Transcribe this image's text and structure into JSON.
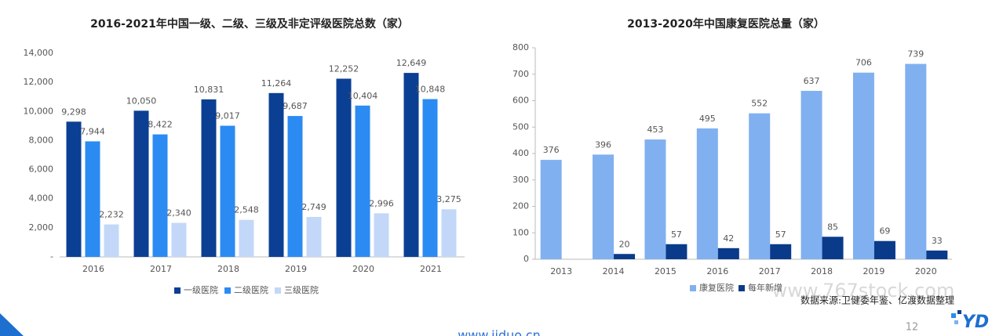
{
  "chart_data": [
    {
      "type": "bar",
      "title": "2016-2021年中国一级、二级、三级及非定评级医院总数（家）",
      "categories": [
        "2016",
        "2017",
        "2018",
        "2019",
        "2020",
        "2021"
      ],
      "series": [
        {
          "name": "一级医院",
          "color": "#0b3f94",
          "values": [
            9298,
            10050,
            10831,
            11264,
            12252,
            12649
          ],
          "value_labels": [
            "9,298",
            "10,050",
            "10,831",
            "11,264",
            "12,252",
            "12,649"
          ]
        },
        {
          "name": "二级医院",
          "color": "#2b8bf2",
          "values": [
            7944,
            8422,
            9017,
            9687,
            10404,
            10848
          ],
          "value_labels": [
            "7,944",
            "8,422",
            "9,017",
            "9,687",
            "10,404",
            "10,848"
          ]
        },
        {
          "name": "三级医院",
          "color": "#c3d8f8",
          "values": [
            2232,
            2340,
            2548,
            2749,
            2996,
            3275
          ],
          "value_labels": [
            "2,232",
            "2,340",
            "2,548",
            "2,749",
            "2,996",
            "3,275"
          ]
        }
      ],
      "ylim": [
        0,
        14000
      ],
      "yticks": [
        {
          "value": 0,
          "label": "-"
        },
        {
          "value": 2000,
          "label": "2,000"
        },
        {
          "value": 4000,
          "label": "4,000"
        },
        {
          "value": 6000,
          "label": "6,000"
        },
        {
          "value": 8000,
          "label": "8,000"
        },
        {
          "value": 10000,
          "label": "10,000"
        },
        {
          "value": 12000,
          "label": "12,000"
        },
        {
          "value": 14000,
          "label": "14,000"
        }
      ],
      "legend": "bottom"
    },
    {
      "type": "bar",
      "title": "2013-2020年中国康复医院总量（家）",
      "categories": [
        "2013",
        "2014",
        "2015",
        "2016",
        "2017",
        "2018",
        "2019",
        "2020"
      ],
      "series": [
        {
          "name": "康复医院",
          "color": "#80b0f0",
          "values": [
            376,
            396,
            453,
            495,
            552,
            637,
            706,
            739
          ]
        },
        {
          "name": "每年新增",
          "color": "#0a3a8a",
          "values": [
            null,
            20,
            57,
            42,
            57,
            85,
            69,
            33
          ]
        }
      ],
      "ylim": [
        0,
        800
      ],
      "yticks": [
        0,
        100,
        200,
        300,
        400,
        500,
        600,
        700,
        800
      ],
      "legend": "bottom"
    }
  ],
  "source": "数据来源:卫健委年鉴、亿渡数据整理",
  "watermark": "www.767stock.com",
  "footer_url": "www.jiduo.cn",
  "page_number": "12"
}
